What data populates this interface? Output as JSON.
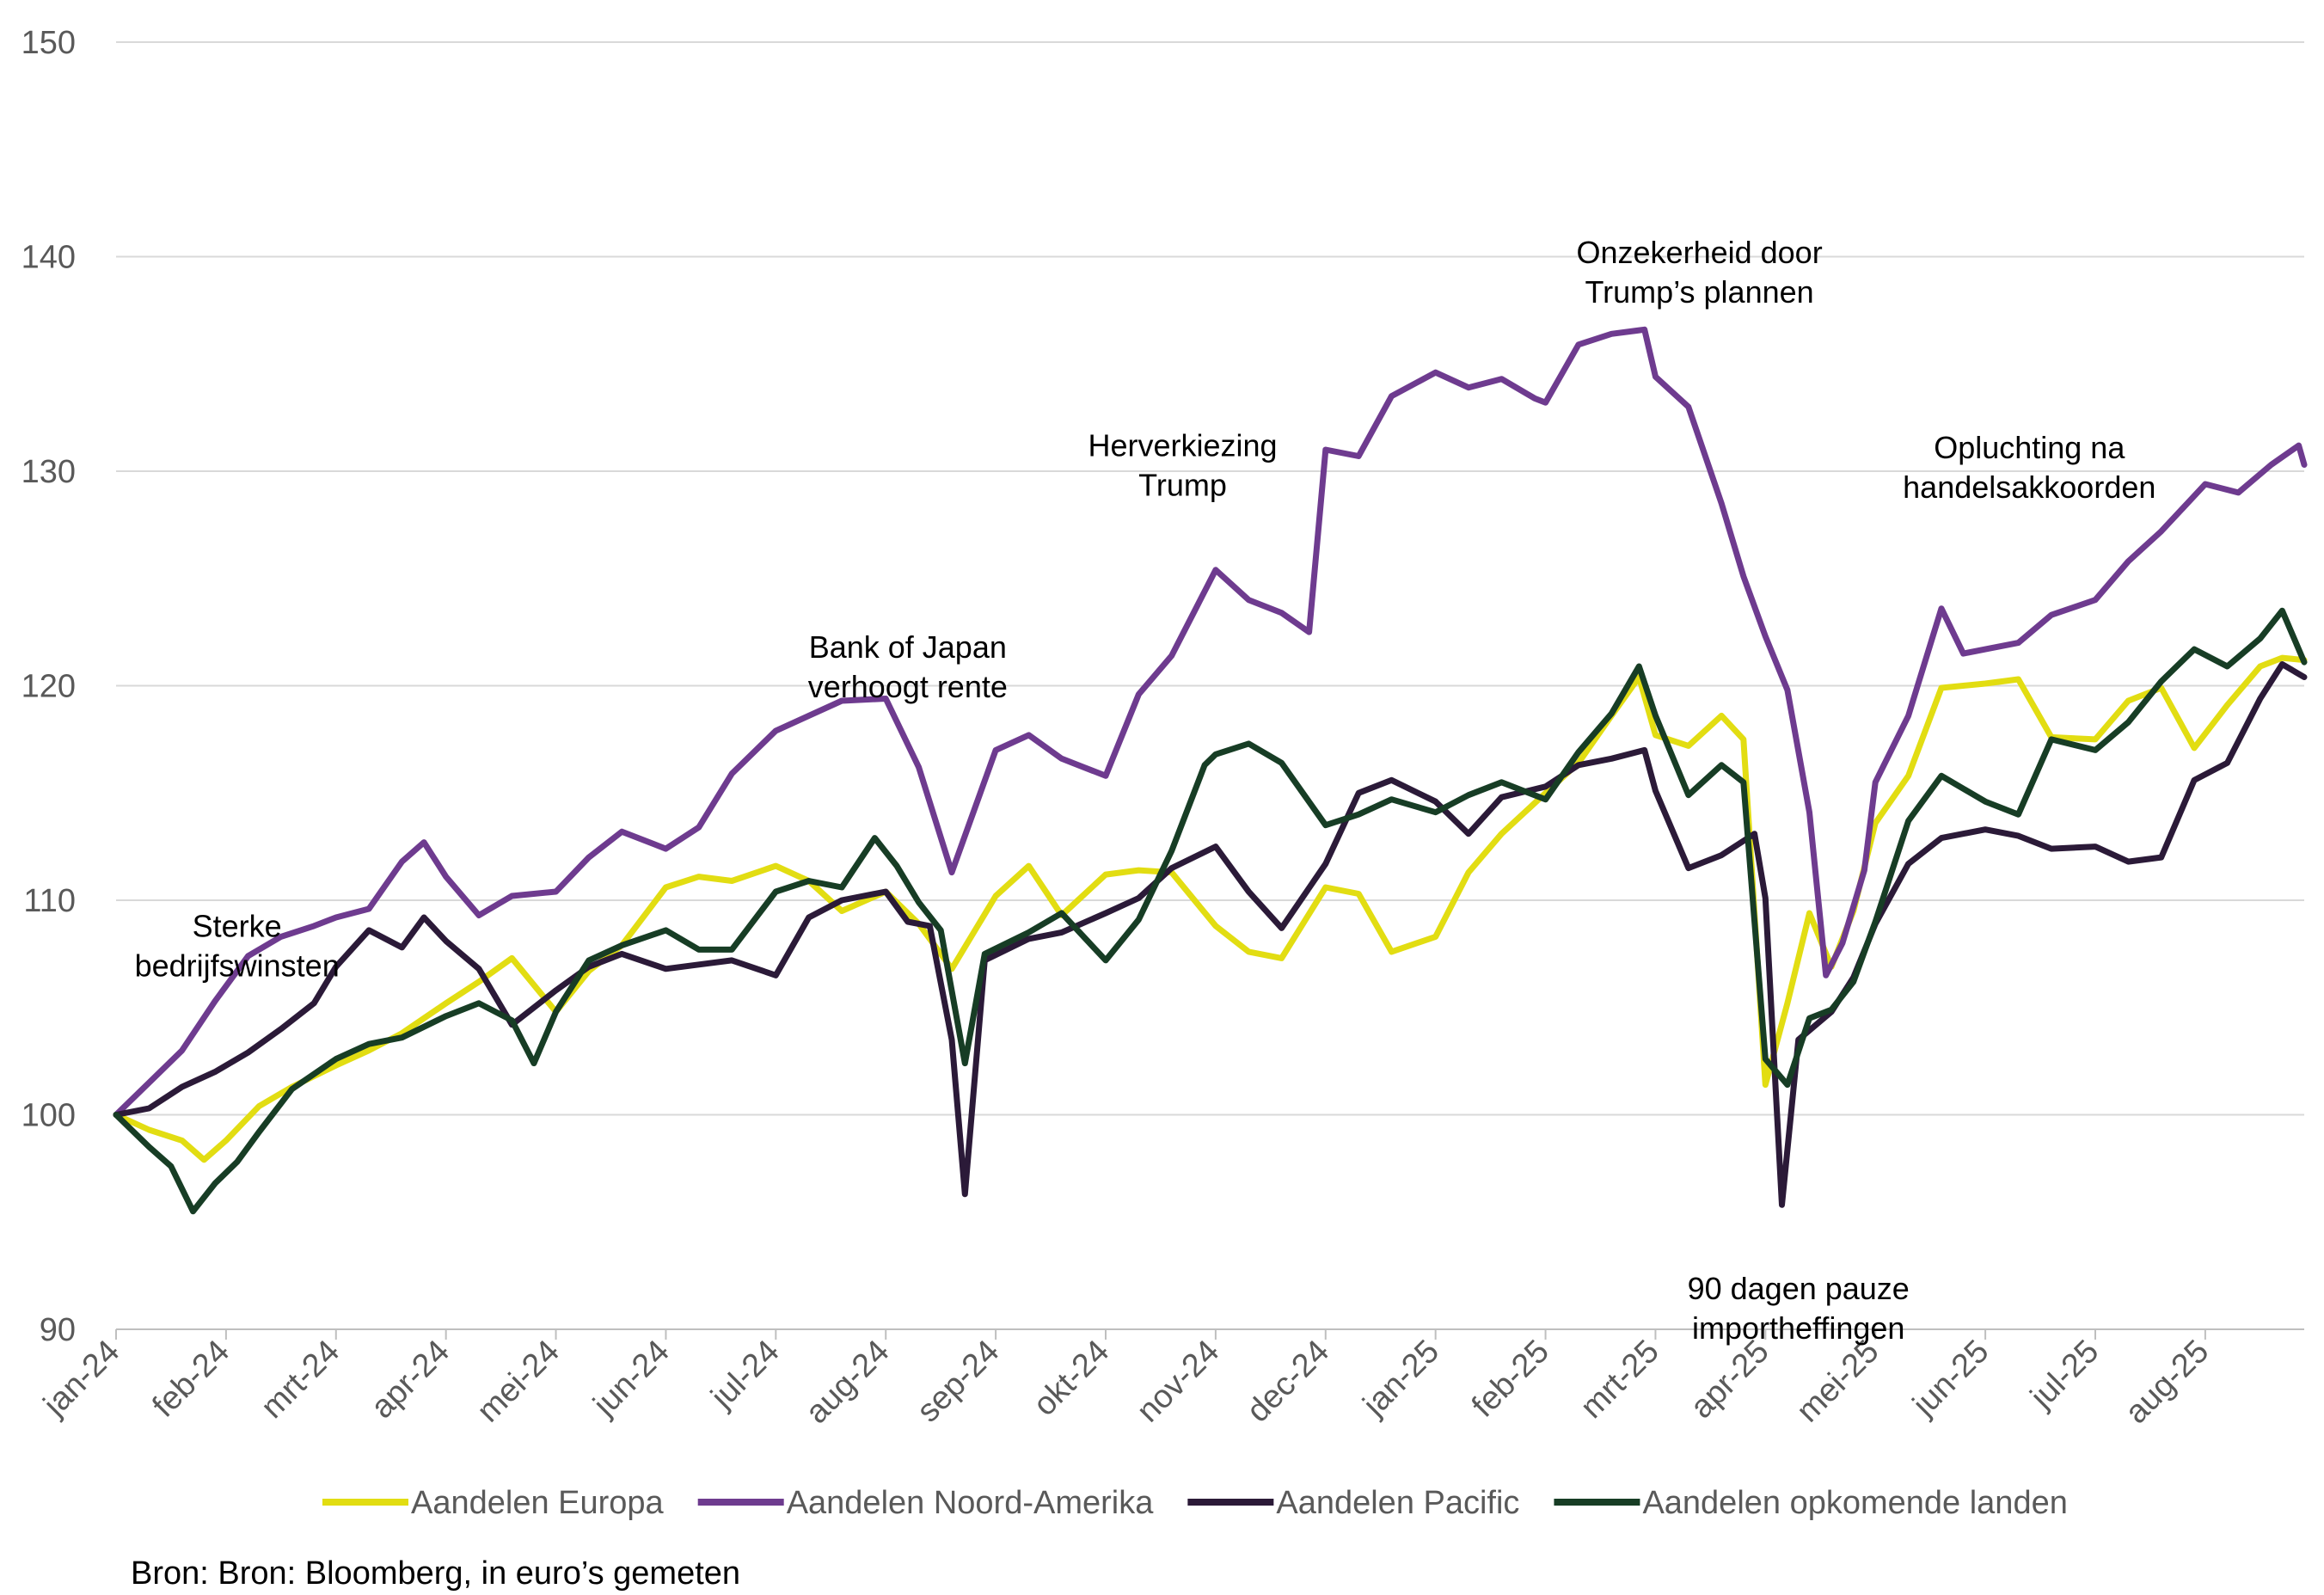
{
  "chart_data": {
    "type": "line",
    "ylim": [
      90,
      150
    ],
    "yticks": [
      "90",
      "100",
      "110",
      "120",
      "130",
      "140",
      "150"
    ],
    "xticks": [
      "jan-24",
      "feb-24",
      "mrt-24",
      "apr-24",
      "mei-24",
      "jun-24",
      "jul-24",
      "aug-24",
      "sep-24",
      "okt-24",
      "nov-24",
      "dec-24",
      "jan-25",
      "feb-25",
      "mrt-25",
      "apr-25",
      "mei-25",
      "jun-25",
      "jul-25",
      "aug-25"
    ],
    "x_range_months": [
      0,
      19.9
    ],
    "grid": "horizontal",
    "legend_position": "bottom",
    "series": [
      {
        "name": "Aandelen Europa",
        "color": "#e2dd12",
        "points": [
          [
            0,
            100
          ],
          [
            0.3,
            99.3
          ],
          [
            0.6,
            98.8
          ],
          [
            0.8,
            97.9
          ],
          [
            1,
            98.8
          ],
          [
            1.3,
            100.4
          ],
          [
            1.6,
            101.3
          ],
          [
            2,
            102.3
          ],
          [
            2.3,
            103.0
          ],
          [
            2.6,
            103.8
          ],
          [
            3,
            105.2
          ],
          [
            3.3,
            106.2
          ],
          [
            3.6,
            107.3
          ],
          [
            4,
            104.8
          ],
          [
            4.3,
            106.7
          ],
          [
            4.6,
            107.9
          ],
          [
            5,
            110.6
          ],
          [
            5.3,
            111.1
          ],
          [
            5.6,
            110.9
          ],
          [
            6,
            111.6
          ],
          [
            6.3,
            110.9
          ],
          [
            6.6,
            109.5
          ],
          [
            7,
            110.4
          ],
          [
            7.3,
            108.9
          ],
          [
            7.6,
            106.8
          ],
          [
            8,
            110.2
          ],
          [
            8.3,
            111.6
          ],
          [
            8.6,
            109.3
          ],
          [
            9,
            111.2
          ],
          [
            9.3,
            111.4
          ],
          [
            9.6,
            111.3
          ],
          [
            10,
            108.8
          ],
          [
            10.3,
            107.6
          ],
          [
            10.6,
            107.3
          ],
          [
            11,
            110.6
          ],
          [
            11.3,
            110.3
          ],
          [
            11.6,
            107.6
          ],
          [
            12,
            108.3
          ],
          [
            12.3,
            111.3
          ],
          [
            12.6,
            113.1
          ],
          [
            13,
            115.0
          ],
          [
            13.3,
            116.4
          ],
          [
            13.6,
            118.6
          ],
          [
            13.85,
            120.4
          ],
          [
            14,
            117.7
          ],
          [
            14.3,
            117.2
          ],
          [
            14.6,
            118.6
          ],
          [
            14.8,
            117.5
          ],
          [
            15,
            101.4
          ],
          [
            15.2,
            105.2
          ],
          [
            15.4,
            109.4
          ],
          [
            15.6,
            106.9
          ],
          [
            15.8,
            109.5
          ],
          [
            16,
            113.6
          ],
          [
            16.3,
            115.8
          ],
          [
            16.6,
            119.9
          ],
          [
            17,
            120.1
          ],
          [
            17.3,
            120.3
          ],
          [
            17.6,
            117.6
          ],
          [
            18,
            117.5
          ],
          [
            18.3,
            119.3
          ],
          [
            18.6,
            119.9
          ],
          [
            18.9,
            117.1
          ],
          [
            19.2,
            119.1
          ],
          [
            19.5,
            120.9
          ],
          [
            19.7,
            121.3
          ],
          [
            19.9,
            121.2
          ]
        ]
      },
      {
        "name": "Aandelen Noord-Amerika",
        "color": "#6e3b8f",
        "points": [
          [
            0,
            100
          ],
          [
            0.3,
            101.5
          ],
          [
            0.6,
            103.0
          ],
          [
            0.9,
            105.3
          ],
          [
            1.2,
            107.4
          ],
          [
            1.5,
            108.3
          ],
          [
            1.8,
            108.8
          ],
          [
            2,
            109.2
          ],
          [
            2.3,
            109.6
          ],
          [
            2.6,
            111.8
          ],
          [
            2.8,
            112.7
          ],
          [
            3,
            111.1
          ],
          [
            3.3,
            109.3
          ],
          [
            3.6,
            110.2
          ],
          [
            4,
            110.4
          ],
          [
            4.3,
            112.0
          ],
          [
            4.6,
            113.2
          ],
          [
            5,
            112.4
          ],
          [
            5.3,
            113.4
          ],
          [
            5.6,
            115.9
          ],
          [
            6,
            117.9
          ],
          [
            6.3,
            118.6
          ],
          [
            6.6,
            119.3
          ],
          [
            7,
            119.4
          ],
          [
            7.3,
            116.2
          ],
          [
            7.6,
            111.3
          ],
          [
            8,
            117.0
          ],
          [
            8.3,
            117.7
          ],
          [
            8.6,
            116.6
          ],
          [
            9,
            115.8
          ],
          [
            9.3,
            119.6
          ],
          [
            9.6,
            121.4
          ],
          [
            10,
            125.4
          ],
          [
            10.3,
            124.0
          ],
          [
            10.6,
            123.4
          ],
          [
            10.85,
            122.5
          ],
          [
            11,
            131.0
          ],
          [
            11.3,
            130.7
          ],
          [
            11.6,
            133.5
          ],
          [
            12,
            134.6
          ],
          [
            12.3,
            133.9
          ],
          [
            12.6,
            134.3
          ],
          [
            12.9,
            133.4
          ],
          [
            13,
            133.2
          ],
          [
            13.3,
            135.9
          ],
          [
            13.6,
            136.4
          ],
          [
            13.9,
            136.6
          ],
          [
            14,
            134.4
          ],
          [
            14.3,
            133.0
          ],
          [
            14.6,
            128.5
          ],
          [
            14.8,
            125.1
          ],
          [
            15,
            122.3
          ],
          [
            15.2,
            119.8
          ],
          [
            15.4,
            114.1
          ],
          [
            15.55,
            106.5
          ],
          [
            15.7,
            108.0
          ],
          [
            15.9,
            111.4
          ],
          [
            16,
            115.5
          ],
          [
            16.3,
            118.6
          ],
          [
            16.6,
            123.6
          ],
          [
            16.8,
            121.5
          ],
          [
            17,
            121.7
          ],
          [
            17.3,
            122.0
          ],
          [
            17.6,
            123.3
          ],
          [
            18,
            124.0
          ],
          [
            18.3,
            125.8
          ],
          [
            18.6,
            127.2
          ],
          [
            19,
            129.4
          ],
          [
            19.3,
            129.0
          ],
          [
            19.6,
            130.3
          ],
          [
            19.85,
            131.2
          ],
          [
            19.9,
            130.3
          ]
        ]
      },
      {
        "name": "Aandelen Pacific",
        "color": "#2b1a38",
        "points": [
          [
            0,
            100
          ],
          [
            0.3,
            100.3
          ],
          [
            0.6,
            101.3
          ],
          [
            0.9,
            102.0
          ],
          [
            1.2,
            102.9
          ],
          [
            1.5,
            104.0
          ],
          [
            1.8,
            105.2
          ],
          [
            2,
            106.9
          ],
          [
            2.3,
            108.6
          ],
          [
            2.6,
            107.8
          ],
          [
            2.8,
            109.2
          ],
          [
            3,
            108.1
          ],
          [
            3.3,
            106.8
          ],
          [
            3.6,
            104.2
          ],
          [
            4,
            105.8
          ],
          [
            4.3,
            106.9
          ],
          [
            4.6,
            107.5
          ],
          [
            5,
            106.8
          ],
          [
            5.3,
            107.0
          ],
          [
            5.6,
            107.2
          ],
          [
            6,
            106.5
          ],
          [
            6.3,
            109.2
          ],
          [
            6.6,
            110.0
          ],
          [
            7,
            110.4
          ],
          [
            7.2,
            109.0
          ],
          [
            7.4,
            108.8
          ],
          [
            7.6,
            103.5
          ],
          [
            7.72,
            96.3
          ],
          [
            7.9,
            107.2
          ],
          [
            8.3,
            108.2
          ],
          [
            8.6,
            108.5
          ],
          [
            9,
            109.4
          ],
          [
            9.3,
            110.1
          ],
          [
            9.6,
            111.5
          ],
          [
            10,
            112.5
          ],
          [
            10.3,
            110.4
          ],
          [
            10.6,
            108.7
          ],
          [
            11,
            111.7
          ],
          [
            11.3,
            115.0
          ],
          [
            11.6,
            115.6
          ],
          [
            12,
            114.6
          ],
          [
            12.3,
            113.1
          ],
          [
            12.6,
            114.8
          ],
          [
            13,
            115.3
          ],
          [
            13.3,
            116.3
          ],
          [
            13.6,
            116.6
          ],
          [
            13.9,
            117.0
          ],
          [
            14,
            115.1
          ],
          [
            14.3,
            111.5
          ],
          [
            14.6,
            112.1
          ],
          [
            14.9,
            113.1
          ],
          [
            15,
            110.1
          ],
          [
            15.15,
            95.8
          ],
          [
            15.3,
            103.5
          ],
          [
            15.6,
            104.8
          ],
          [
            15.8,
            106.4
          ],
          [
            16,
            108.9
          ],
          [
            16.3,
            111.7
          ],
          [
            16.6,
            112.9
          ],
          [
            17,
            113.3
          ],
          [
            17.3,
            113.0
          ],
          [
            17.6,
            112.4
          ],
          [
            18,
            112.5
          ],
          [
            18.3,
            111.8
          ],
          [
            18.6,
            112.0
          ],
          [
            18.9,
            115.6
          ],
          [
            19.2,
            116.4
          ],
          [
            19.5,
            119.4
          ],
          [
            19.7,
            121.0
          ],
          [
            19.9,
            120.4
          ]
        ]
      },
      {
        "name": "Aandelen opkomende landen",
        "color": "#173d25",
        "points": [
          [
            0,
            100
          ],
          [
            0.3,
            98.5
          ],
          [
            0.5,
            97.6
          ],
          [
            0.7,
            95.5
          ],
          [
            0.9,
            96.8
          ],
          [
            1.1,
            97.8
          ],
          [
            1.3,
            99.2
          ],
          [
            1.6,
            101.2
          ],
          [
            2,
            102.6
          ],
          [
            2.3,
            103.3
          ],
          [
            2.6,
            103.6
          ],
          [
            3,
            104.6
          ],
          [
            3.3,
            105.2
          ],
          [
            3.6,
            104.4
          ],
          [
            3.8,
            102.4
          ],
          [
            4,
            104.8
          ],
          [
            4.3,
            107.2
          ],
          [
            4.6,
            107.9
          ],
          [
            5,
            108.6
          ],
          [
            5.3,
            107.7
          ],
          [
            5.6,
            107.7
          ],
          [
            6,
            110.4
          ],
          [
            6.3,
            110.9
          ],
          [
            6.6,
            110.6
          ],
          [
            6.9,
            112.9
          ],
          [
            7.1,
            111.6
          ],
          [
            7.3,
            109.9
          ],
          [
            7.5,
            108.6
          ],
          [
            7.72,
            102.4
          ],
          [
            7.9,
            107.5
          ],
          [
            8.3,
            108.5
          ],
          [
            8.6,
            109.4
          ],
          [
            9,
            107.2
          ],
          [
            9.3,
            109.1
          ],
          [
            9.6,
            112.3
          ],
          [
            9.9,
            116.3
          ],
          [
            10,
            116.8
          ],
          [
            10.3,
            117.3
          ],
          [
            10.6,
            116.4
          ],
          [
            11,
            113.5
          ],
          [
            11.3,
            114.0
          ],
          [
            11.6,
            114.7
          ],
          [
            12,
            114.1
          ],
          [
            12.3,
            114.9
          ],
          [
            12.6,
            115.5
          ],
          [
            13,
            114.7
          ],
          [
            13.3,
            116.9
          ],
          [
            13.6,
            118.7
          ],
          [
            13.85,
            120.9
          ],
          [
            14,
            118.6
          ],
          [
            14.3,
            114.9
          ],
          [
            14.6,
            116.3
          ],
          [
            14.8,
            115.5
          ],
          [
            15,
            102.6
          ],
          [
            15.2,
            101.4
          ],
          [
            15.4,
            104.5
          ],
          [
            15.6,
            104.9
          ],
          [
            15.8,
            106.2
          ],
          [
            16,
            109.0
          ],
          [
            16.3,
            113.7
          ],
          [
            16.6,
            115.8
          ],
          [
            17,
            114.6
          ],
          [
            17.3,
            114.0
          ],
          [
            17.6,
            117.5
          ],
          [
            18,
            117.0
          ],
          [
            18.3,
            118.3
          ],
          [
            18.6,
            120.2
          ],
          [
            18.9,
            121.7
          ],
          [
            19.2,
            120.9
          ],
          [
            19.5,
            122.2
          ],
          [
            19.7,
            123.5
          ],
          [
            19.9,
            121.1
          ]
        ]
      }
    ],
    "annotations": [
      {
        "lines": [
          "Sterke",
          "bedrijfswinsten"
        ],
        "x": 1.1,
        "y": 108.3
      },
      {
        "lines": [
          "Bank of Japan",
          "verhoogt rente"
        ],
        "x": 7.2,
        "y": 121.3
      },
      {
        "lines": [
          "Herverkiezing",
          "Trump"
        ],
        "x": 9.7,
        "y": 130.7
      },
      {
        "lines": [
          "Onzekerheid door",
          "Trump’s plannen"
        ],
        "x": 14.4,
        "y": 139.7
      },
      {
        "lines": [
          "Opluchting na",
          "handelsakkoorden"
        ],
        "x": 17.4,
        "y": 130.6
      },
      {
        "lines": [
          "90 dagen pauze",
          "importheffingen"
        ],
        "x": 15.3,
        "y": 91.4
      }
    ]
  },
  "source": "Bron: Bron: Bloomberg, in euro’s gemeten"
}
